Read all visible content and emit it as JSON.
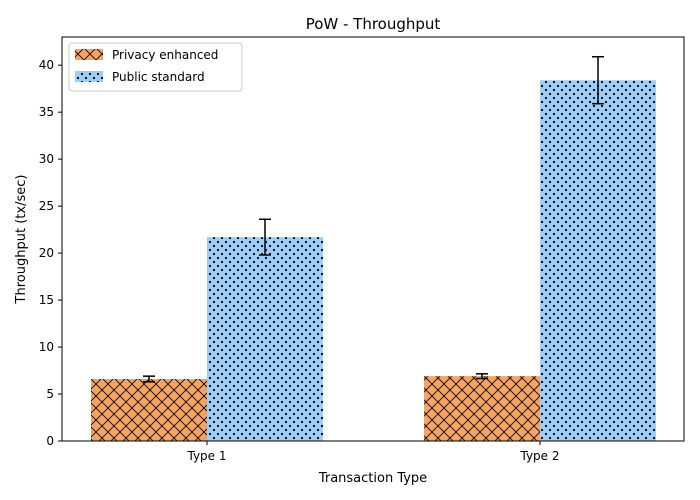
{
  "chart_data": {
    "type": "bar",
    "title": "PoW - Throughput",
    "xlabel": "Transaction Type",
    "ylabel": "Throughput (tx/sec)",
    "categories": [
      "Type 1",
      "Type 2"
    ],
    "ylim": [
      0,
      43
    ],
    "yticks": [
      0,
      5,
      10,
      15,
      20,
      25,
      30,
      35,
      40
    ],
    "grid": false,
    "legend_position": "top-left",
    "series": [
      {
        "name": "Privacy enhanced",
        "values": [
          6.6,
          6.9
        ],
        "errors": [
          0.3,
          0.25
        ],
        "color": "#f4a460",
        "hatch": "crosshatch"
      },
      {
        "name": "Public standard",
        "values": [
          21.7,
          38.4
        ],
        "errors": [
          1.9,
          2.5
        ],
        "color": "#9fcdf7",
        "hatch": "dots"
      }
    ]
  }
}
